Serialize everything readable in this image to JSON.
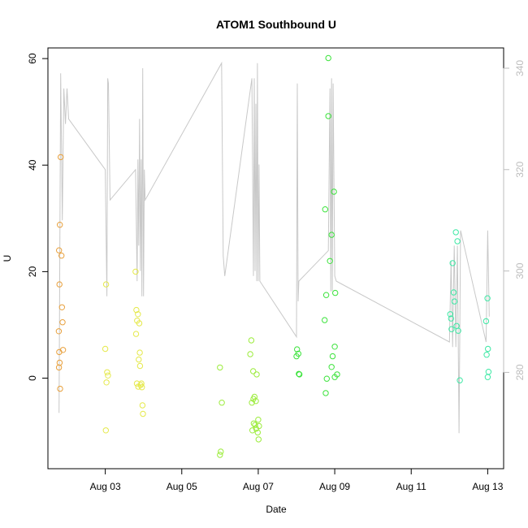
{
  "chart_data": {
    "type": "scatter",
    "title": "ATOM1 Southbound U",
    "xlabel": "Date",
    "ylabel": "U",
    "xlim": [
      "2023-08-01 12:00",
      "2023-08-13 10:00"
    ],
    "ylim": [
      -17,
      62
    ],
    "y2lim": [
      261,
      344
    ],
    "x_ticks": [
      {
        "date": "2023-08-03",
        "label": "Aug 03"
      },
      {
        "date": "2023-08-05",
        "label": "Aug 05"
      },
      {
        "date": "2023-08-07",
        "label": "Aug 07"
      },
      {
        "date": "2023-08-09",
        "label": "Aug 09"
      },
      {
        "date": "2023-08-11",
        "label": "Aug 11"
      },
      {
        "date": "2023-08-13",
        "label": "Aug 13"
      }
    ],
    "y_ticks": [
      0,
      20,
      40,
      60
    ],
    "y2_ticks": [
      280,
      300,
      320,
      340
    ],
    "grid": false,
    "legend": "none",
    "series": [
      {
        "axis": "left",
        "marker": "open-circle",
        "color": "#e8a03c",
        "points": [
          [
            "2023-08-01 20:00",
            41.5
          ],
          [
            "2023-08-01 19:30",
            28.8
          ],
          [
            "2023-08-01 19:00",
            24.0
          ],
          [
            "2023-08-01 20:30",
            23.0
          ],
          [
            "2023-08-01 19:15",
            17.6
          ],
          [
            "2023-08-01 20:50",
            13.3
          ],
          [
            "2023-08-01 21:10",
            10.5
          ],
          [
            "2023-08-01 18:50",
            8.8
          ],
          [
            "2023-08-01 21:30",
            5.3
          ],
          [
            "2023-08-01 19:05",
            4.9
          ],
          [
            "2023-08-01 19:20",
            2.9
          ],
          [
            "2023-08-01 18:55",
            2.0
          ],
          [
            "2023-08-01 19:40",
            -2.0
          ]
        ]
      },
      {
        "axis": "left",
        "marker": "open-circle",
        "color": "#e5e94a",
        "points": [
          [
            "2023-08-03 00:30",
            17.6
          ],
          [
            "2023-08-03 00:00",
            5.5
          ],
          [
            "2023-08-03 01:10",
            1.1
          ],
          [
            "2023-08-03 01:40",
            0.5
          ],
          [
            "2023-08-03 00:45",
            -0.8
          ],
          [
            "2023-08-03 00:20",
            -9.8
          ],
          [
            "2023-08-03 19:00",
            20.0
          ],
          [
            "2023-08-03 19:30",
            12.8
          ],
          [
            "2023-08-03 20:30",
            12.0
          ],
          [
            "2023-08-03 20:00",
            10.8
          ],
          [
            "2023-08-03 21:20",
            10.3
          ],
          [
            "2023-08-03 19:20",
            8.3
          ],
          [
            "2023-08-03 21:40",
            4.8
          ],
          [
            "2023-08-03 21:00",
            3.5
          ],
          [
            "2023-08-03 21:50",
            2.3
          ],
          [
            "2023-08-03 19:50",
            -1.0
          ],
          [
            "2023-08-03 20:40",
            -1.6
          ],
          [
            "2023-08-03 22:10",
            -1.3
          ],
          [
            "2023-08-03 23:00",
            -1.7
          ],
          [
            "2023-08-03 22:40",
            -1.0
          ],
          [
            "2023-08-03 23:20",
            -5.1
          ],
          [
            "2023-08-03 23:40",
            -6.7
          ]
        ]
      },
      {
        "axis": "left",
        "marker": "open-circle",
        "color": "#9cec3c",
        "points": [
          [
            "2023-08-06 00:00",
            2.0
          ],
          [
            "2023-08-06 01:10",
            -4.6
          ],
          [
            "2023-08-06 00:30",
            -13.8
          ],
          [
            "2023-08-06 00:00",
            -14.4
          ],
          [
            "2023-08-06 19:40",
            7.1
          ],
          [
            "2023-08-06 19:00",
            4.5
          ],
          [
            "2023-08-06 20:50",
            1.3
          ],
          [
            "2023-08-06 23:00",
            0.7
          ],
          [
            "2023-08-06 21:40",
            -3.5
          ],
          [
            "2023-08-06 21:00",
            -3.9
          ],
          [
            "2023-08-06 22:30",
            -4.3
          ],
          [
            "2023-08-06 20:00",
            -4.6
          ],
          [
            "2023-08-07 00:00",
            -7.8
          ],
          [
            "2023-08-06 21:10",
            -8.5
          ],
          [
            "2023-08-06 22:00",
            -8.8
          ],
          [
            "2023-08-07 00:30",
            -9.0
          ],
          [
            "2023-08-06 22:40",
            -9.5
          ],
          [
            "2023-08-06 20:20",
            -9.8
          ],
          [
            "2023-08-06 23:40",
            -10.2
          ],
          [
            "2023-08-07 00:10",
            -11.5
          ]
        ]
      },
      {
        "axis": "left",
        "marker": "open-circle",
        "color": "#3be33b",
        "points": [
          [
            "2023-08-08 20:00",
            60.1
          ],
          [
            "2023-08-08 20:00",
            49.2
          ],
          [
            "2023-08-08 23:30",
            35.0
          ],
          [
            "2023-08-08 18:00",
            31.7
          ],
          [
            "2023-08-08 22:00",
            26.9
          ],
          [
            "2023-08-08 21:00",
            22.0
          ],
          [
            "2023-08-09 00:20",
            16.0
          ],
          [
            "2023-08-08 18:40",
            15.6
          ],
          [
            "2023-08-08 17:40",
            10.9
          ],
          [
            "2023-08-09 00:00",
            5.9
          ],
          [
            "2023-08-08 22:40",
            4.1
          ],
          [
            "2023-08-08 22:00",
            2.1
          ],
          [
            "2023-08-09 01:30",
            0.7
          ],
          [
            "2023-08-09 00:00",
            0.2
          ],
          [
            "2023-08-08 19:00",
            -0.1
          ],
          [
            "2023-08-08 18:20",
            -2.8
          ],
          [
            "2023-08-08 00:20",
            5.4
          ],
          [
            "2023-08-08 00:00",
            4.1
          ],
          [
            "2023-08-08 01:10",
            4.6
          ],
          [
            "2023-08-08 01:30",
            0.8
          ],
          [
            "2023-08-08 01:50",
            0.7
          ]
        ]
      },
      {
        "axis": "left",
        "marker": "open-circle",
        "color": "#3ce8a4",
        "points": [
          [
            "2023-08-12 04:00",
            27.4
          ],
          [
            "2023-08-12 05:00",
            25.7
          ],
          [
            "2023-08-12 02:00",
            21.6
          ],
          [
            "2023-08-12 02:40",
            16.1
          ],
          [
            "2023-08-12 03:10",
            14.4
          ],
          [
            "2023-08-12 00:30",
            12.0
          ],
          [
            "2023-08-12 01:00",
            11.2
          ],
          [
            "2023-08-12 04:30",
            9.8
          ],
          [
            "2023-08-12 01:20",
            9.2
          ],
          [
            "2023-08-12 05:30",
            8.9
          ],
          [
            "2023-08-12 06:30",
            -0.4
          ],
          [
            "2023-08-12 23:50",
            15.0
          ],
          [
            "2023-08-12 23:00",
            10.7
          ],
          [
            "2023-08-13 00:10",
            5.5
          ],
          [
            "2023-08-12 23:20",
            4.4
          ],
          [
            "2023-08-13 00:30",
            1.2
          ],
          [
            "2023-08-13 00:00",
            0.2
          ]
        ]
      },
      {
        "axis": "right",
        "marker": "line",
        "color": "#c8c8c8",
        "points": [
          [
            "2023-08-01 19:00",
            272
          ],
          [
            "2023-08-01 20:00",
            339
          ],
          [
            "2023-08-01 21:00",
            310
          ],
          [
            "2023-08-01 22:00",
            336
          ],
          [
            "2023-08-01 23:00",
            329
          ],
          [
            "2023-08-02 00:00",
            336
          ],
          [
            "2023-08-02 01:00",
            330
          ],
          [
            "2023-08-03 00:00",
            320
          ],
          [
            "2023-08-03 01:00",
            295
          ],
          [
            "2023-08-03 01:30",
            338
          ],
          [
            "2023-08-03 02:00",
            337
          ],
          [
            "2023-08-03 03:00",
            314
          ],
          [
            "2023-08-03 19:00",
            320
          ],
          [
            "2023-08-03 20:00",
            298
          ],
          [
            "2023-08-03 20:30",
            322
          ],
          [
            "2023-08-03 21:00",
            305
          ],
          [
            "2023-08-03 21:30",
            330
          ],
          [
            "2023-08-03 22:00",
            300
          ],
          [
            "2023-08-03 22:30",
            322
          ],
          [
            "2023-08-03 23:00",
            295
          ],
          [
            "2023-08-03 23:30",
            340
          ],
          [
            "2023-08-04 00:00",
            295
          ],
          [
            "2023-08-04 00:30",
            320
          ],
          [
            "2023-08-04 01:00",
            314
          ],
          [
            "2023-08-06 01:00",
            341
          ],
          [
            "2023-08-06 02:00",
            303
          ],
          [
            "2023-08-06 03:00",
            299
          ],
          [
            "2023-08-06 20:00",
            338
          ],
          [
            "2023-08-06 21:00",
            299
          ],
          [
            "2023-08-06 21:30",
            338
          ],
          [
            "2023-08-06 22:00",
            300
          ],
          [
            "2023-08-06 22:30",
            333
          ],
          [
            "2023-08-06 23:00",
            298
          ],
          [
            "2023-08-06 23:30",
            341
          ],
          [
            "2023-08-07 00:00",
            298
          ],
          [
            "2023-08-07 00:30",
            321
          ],
          [
            "2023-08-07 01:00",
            298
          ],
          [
            "2023-08-08 00:00",
            287
          ],
          [
            "2023-08-08 00:30",
            337
          ],
          [
            "2023-08-08 01:00",
            294
          ],
          [
            "2023-08-08 01:30",
            298
          ],
          [
            "2023-08-08 20:00",
            304
          ],
          [
            "2023-08-08 21:00",
            336
          ],
          [
            "2023-08-08 21:30",
            296
          ],
          [
            "2023-08-08 22:00",
            338
          ],
          [
            "2023-08-08 22:30",
            296
          ],
          [
            "2023-08-08 23:00",
            337
          ],
          [
            "2023-08-09 00:00",
            299
          ],
          [
            "2023-08-09 01:00",
            298
          ],
          [
            "2023-08-12 00:00",
            286
          ],
          [
            "2023-08-12 01:00",
            302
          ],
          [
            "2023-08-12 02:00",
            285
          ],
          [
            "2023-08-12 03:00",
            305
          ],
          [
            "2023-08-12 04:00",
            285
          ],
          [
            "2023-08-12 05:00",
            305
          ],
          [
            "2023-08-12 06:00",
            268
          ],
          [
            "2023-08-12 07:00",
            308
          ],
          [
            "2023-08-12 23:00",
            286
          ],
          [
            "2023-08-13 00:00",
            308
          ],
          [
            "2023-08-13 01:00",
            291
          ]
        ]
      }
    ]
  }
}
